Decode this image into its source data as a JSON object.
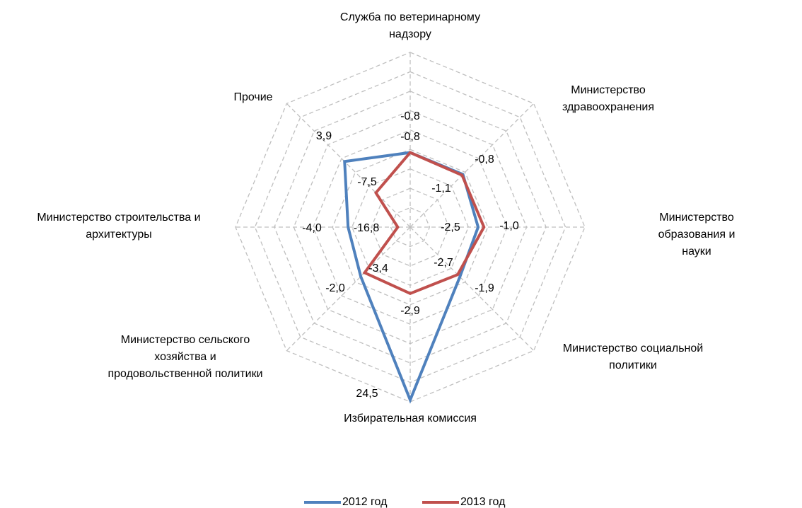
{
  "chart_data": {
    "type": "radar",
    "categories": [
      "Служба по ветеринарному\nнадзору",
      "Министерство\nздравоохранения",
      "Министерство образования и\nнауки",
      "Министерство социальной\nполитики",
      "Избирательная комиссия",
      "Министерство сельского\nхозяйства и\nпродовольственной политики",
      "Министерство строительства и\nархитектуры",
      "Прочие"
    ],
    "series": [
      {
        "name": "2012 год",
        "color": "#4f81bd",
        "values": [
          -0.8,
          -0.8,
          -2.5,
          -1.9,
          24.5,
          -2.0,
          -4.0,
          3.9
        ],
        "value_labels": [
          "-0,8",
          "-0,8",
          "-2,5",
          "-1,9",
          "24,5",
          "-2,0",
          "-4,0",
          "3,9"
        ]
      },
      {
        "name": "2013 год",
        "color": "#c0504d",
        "values": [
          -0.8,
          -1.1,
          -1.0,
          -2.7,
          -2.9,
          -3.4,
          -16.8,
          -7.5
        ],
        "value_labels": [
          "-0,8",
          "-1,1",
          "-1,0",
          "-2,7",
          "-2,9",
          "-3,4",
          "-16,8",
          "-7,5"
        ]
      }
    ],
    "ylim": [
      -20,
      25
    ],
    "yticks": [
      -20,
      -15,
      -10,
      -5,
      0,
      5,
      10,
      15,
      20,
      25
    ],
    "grid": true,
    "legend": "bottom"
  }
}
